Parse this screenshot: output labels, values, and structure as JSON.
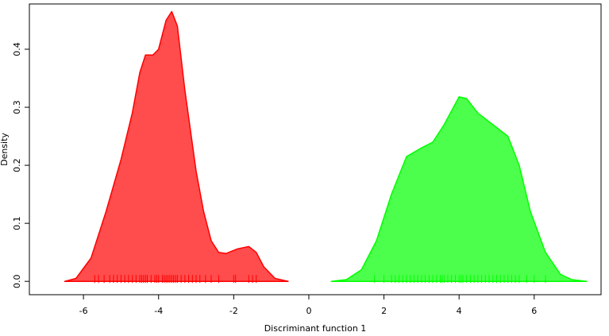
{
  "chart_data": {
    "type": "density",
    "xlabel": "Discriminant function 1",
    "ylabel": "Density",
    "xlim": [
      -7.44,
      7.78
    ],
    "ylim": [
      -0.023,
      0.478
    ],
    "xticks": [
      -6,
      -4,
      -2,
      0,
      2,
      4,
      6
    ],
    "yticks": [
      {
        "value": 0,
        "label": "0.0"
      },
      0.1,
      0.2,
      0.3,
      0.4
    ],
    "series": [
      {
        "color": "#ff0000",
        "x": [
          -6.5,
          -6.2,
          -5.8,
          -5.4,
          -5.0,
          -4.7,
          -4.5,
          -4.35,
          -4.15,
          -4.0,
          -3.8,
          -3.65,
          -3.5,
          -3.3,
          -3.0,
          -2.8,
          -2.6,
          -2.4,
          -2.2,
          -1.9,
          -1.6,
          -1.4,
          -1.2,
          -0.9,
          -0.55
        ],
        "values": [
          0,
          0.005,
          0.04,
          0.12,
          0.21,
          0.29,
          0.36,
          0.39,
          0.39,
          0.4,
          0.45,
          0.465,
          0.44,
          0.33,
          0.19,
          0.12,
          0.07,
          0.05,
          0.048,
          0.056,
          0.06,
          0.05,
          0.025,
          0.005,
          0
        ],
        "rug": [
          -5.7,
          -5.6,
          -5.45,
          -5.3,
          -5.2,
          -5.1,
          -5.0,
          -4.9,
          -4.8,
          -4.7,
          -4.6,
          -4.5,
          -4.45,
          -4.4,
          -4.35,
          -4.3,
          -4.2,
          -4.1,
          -4.05,
          -4.0,
          -3.9,
          -3.85,
          -3.8,
          -3.75,
          -3.7,
          -3.65,
          -3.6,
          -3.55,
          -3.5,
          -3.4,
          -3.3,
          -3.2,
          -3.1,
          -3.0,
          -2.9,
          -2.75,
          -2.6,
          -2.4,
          -2.0,
          -1.95,
          -1.6,
          -1.5,
          -1.4
        ]
      },
      {
        "color": "#00ff00",
        "x": [
          0.6,
          1.0,
          1.4,
          1.8,
          2.2,
          2.6,
          3.0,
          3.3,
          3.6,
          4.0,
          4.2,
          4.5,
          4.9,
          5.3,
          5.6,
          5.9,
          6.3,
          6.7,
          7.0,
          7.4
        ],
        "values": [
          0,
          0.003,
          0.02,
          0.07,
          0.15,
          0.215,
          0.23,
          0.24,
          0.27,
          0.318,
          0.315,
          0.29,
          0.27,
          0.25,
          0.2,
          0.12,
          0.05,
          0.012,
          0.003,
          0
        ],
        "rug": [
          1.75,
          2.0,
          2.2,
          2.3,
          2.4,
          2.5,
          2.6,
          2.7,
          2.8,
          2.9,
          3.0,
          3.1,
          3.2,
          3.3,
          3.4,
          3.5,
          3.55,
          3.6,
          3.7,
          3.8,
          3.9,
          4.0,
          4.05,
          4.1,
          4.2,
          4.3,
          4.4,
          4.5,
          4.6,
          4.7,
          4.8,
          4.9,
          5.0,
          5.1,
          5.2,
          5.3,
          5.4,
          5.5,
          5.6,
          5.8,
          6.0,
          6.3
        ]
      }
    ]
  }
}
